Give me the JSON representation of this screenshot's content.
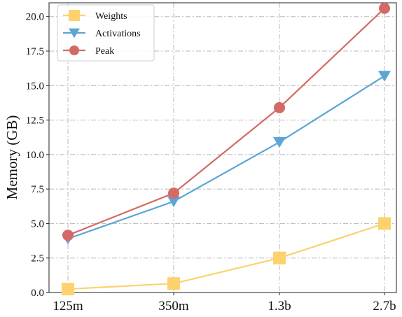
{
  "chart_data": {
    "type": "line",
    "title": "",
    "xlabel": "",
    "ylabel": "Memory (GB)",
    "categories": [
      "125m",
      "350m",
      "1.3b",
      "2.7b"
    ],
    "ylim": [
      0,
      21
    ],
    "yticks": [
      "0.0",
      "2.5",
      "5.0",
      "7.5",
      "10.0",
      "12.5",
      "15.0",
      "17.5",
      "20.0"
    ],
    "ytick_values": [
      0,
      2.5,
      5,
      7.5,
      10,
      12.5,
      15,
      17.5,
      20
    ],
    "grid": true,
    "legend_position": "top-left",
    "series": [
      {
        "name": "Weights",
        "values": [
          0.25,
          0.65,
          2.5,
          5.0
        ],
        "color": "#FDD26E",
        "marker": "square"
      },
      {
        "name": "Activations",
        "values": [
          3.9,
          6.6,
          10.9,
          15.7
        ],
        "color": "#5AA6D6",
        "marker": "triangle-down"
      },
      {
        "name": "Peak",
        "values": [
          4.15,
          7.2,
          13.4,
          20.6
        ],
        "color": "#D46A66",
        "marker": "circle"
      }
    ]
  }
}
